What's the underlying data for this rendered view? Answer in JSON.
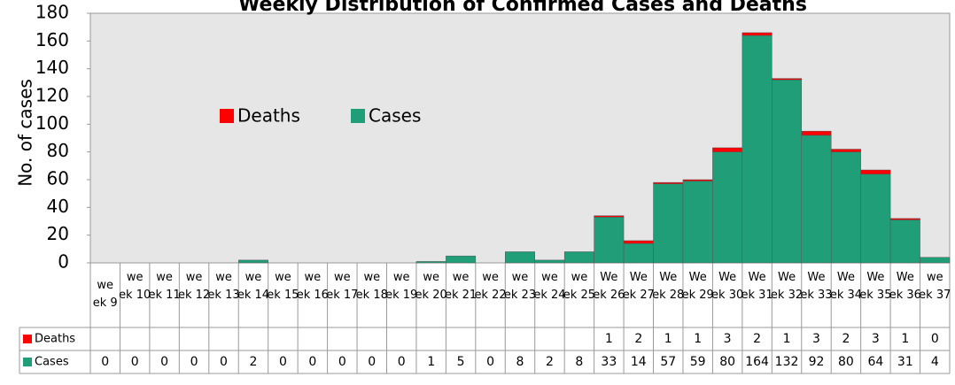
{
  "chart_data": {
    "type": "stacked_bar",
    "title": "Weekly Distribution of Confirmed Cases and Deaths",
    "y_label": "No. of cases",
    "categories": [
      "week 9",
      "week 10",
      "week 11",
      "week 12",
      "week 13",
      "week 14",
      "week 15",
      "week 16",
      "week 17",
      "week 18",
      "week 19",
      "week 20",
      "week 21",
      "week 22",
      "week 23",
      "week 24",
      "week 25",
      "Week 26",
      "Week 27",
      "Week 28",
      "Week 29",
      "Week 30",
      "Week 31",
      "Week 32",
      "Week 33",
      "Week 34",
      "Week 35",
      "Week 36",
      "week 37"
    ],
    "series": [
      {
        "name": "Cases",
        "color": "#1f9e78",
        "values": [
          0,
          0,
          0,
          0,
          0,
          2,
          0,
          0,
          0,
          0,
          0,
          1,
          5,
          0,
          8,
          2,
          8,
          33,
          14,
          57,
          59,
          80,
          164,
          132,
          92,
          80,
          64,
          31,
          4
        ]
      },
      {
        "name": "Deaths",
        "color": "#ff0000",
        "values": [
          null,
          null,
          null,
          null,
          null,
          null,
          null,
          null,
          null,
          null,
          null,
          null,
          null,
          null,
          null,
          null,
          null,
          1,
          2,
          1,
          1,
          3,
          2,
          1,
          3,
          2,
          3,
          1,
          0
        ]
      }
    ],
    "ylim": [
      0,
      180
    ],
    "yticks": [
      0,
      20,
      40,
      60,
      80,
      100,
      120,
      140,
      160,
      180
    ]
  }
}
